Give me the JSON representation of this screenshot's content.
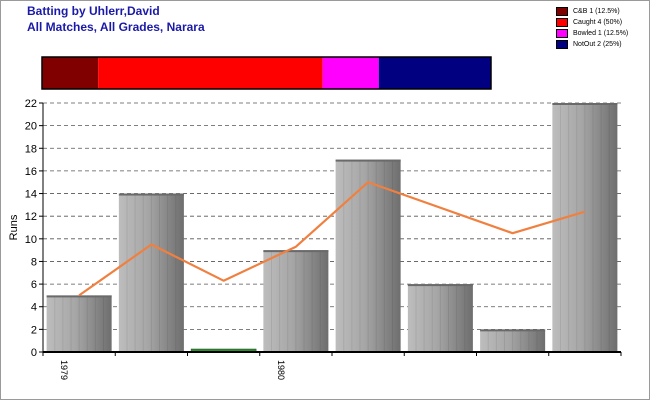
{
  "header": {
    "title": "Batting by Uhlerr,David",
    "subtitle": "All Matches, All Grades, Narara"
  },
  "legend": [
    {
      "label": "C&B 1 (12.5%)",
      "color": "#800000"
    },
    {
      "label": "Caught 4 (50%)",
      "color": "#ff0000"
    },
    {
      "label": "Bowled 1 (12.5%)",
      "color": "#ff00ff"
    },
    {
      "label": "NotOut 2 (25%)",
      "color": "#000080"
    }
  ],
  "chart_data": {
    "type": "bar",
    "ylabel": "Runs",
    "ylim": [
      0,
      22
    ],
    "yticks": [
      0,
      2,
      4,
      6,
      8,
      10,
      12,
      14,
      16,
      18,
      20,
      22
    ],
    "grid": true,
    "legend_position": "top-right",
    "x_tick_labels": [
      {
        "index": 0,
        "label": "1979"
      },
      {
        "index": 3,
        "label": "1980"
      }
    ],
    "series": [
      {
        "type": "bar",
        "values": [
          5,
          14,
          0,
          9,
          17,
          6,
          2,
          22
        ],
        "color": "#9a9a9a"
      },
      {
        "type": "line",
        "values": [
          5,
          9.5,
          6.3,
          9.3,
          15,
          null,
          10.5,
          12.4
        ],
        "color": "#f08040"
      }
    ],
    "zero_bar_indices": [
      2
    ],
    "zero_bar_color": "#2e8b2e",
    "dismissal_bar": [
      {
        "label": "C&B",
        "value": 1,
        "color": "#800000"
      },
      {
        "label": "Caught",
        "value": 4,
        "color": "#ff0000"
      },
      {
        "label": "Bowled",
        "value": 1,
        "color": "#ff00ff"
      },
      {
        "label": "NotOut",
        "value": 2,
        "color": "#000080"
      }
    ]
  }
}
